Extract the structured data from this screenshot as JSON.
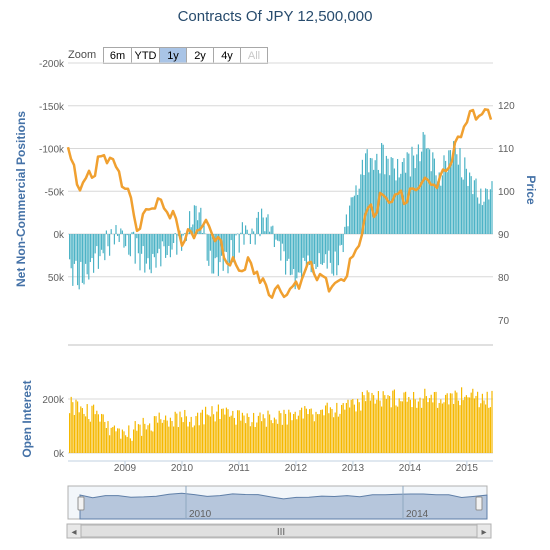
{
  "title": "Contracts Of JPY 12,500,000",
  "zoom": {
    "label": "Zoom",
    "buttons": [
      "6m",
      "YTD",
      "1y",
      "2y",
      "4y",
      "All"
    ],
    "active": "1y",
    "disabled": "All"
  },
  "colors": {
    "position_bars": "#4db3c6",
    "price_line": "#f0a030",
    "open_interest": "#f5b800",
    "axis_title": "#4572a7",
    "navigator_fill": "#b6c6dc",
    "navigator_line": "#5f7fa8"
  },
  "chart_data": [
    {
      "type": "bar",
      "title": "Contracts Of JPY 12,500,000",
      "series": [
        {
          "name": "",
          "type": "bar",
          "x": [
            "2008-01",
            "2008-04",
            "2008-07",
            "2008-10",
            "2009-01",
            "2009-04",
            "2009-07",
            "2009-10",
            "2010-01",
            "2010-04",
            "2010-07",
            "2010-10",
            "2011-01",
            "2011-04",
            "2011-07",
            "2011-10",
            "2012-01",
            "2012-04",
            "2012-07",
            "2012-10",
            "2013-01",
            "2013-04",
            "2013-07",
            "2013-10",
            "2014-01",
            "2014-04",
            "2014-07",
            "2014-10",
            "2015-01",
            "2015-04"
          ],
          "values": [
            50,
            60,
            35,
            15,
            10,
            35,
            45,
            25,
            20,
            -25,
            40,
            45,
            15,
            5,
            -10,
            35,
            60,
            45,
            45,
            40,
            -40,
            -75,
            -80,
            -70,
            -75,
            -100,
            -60,
            -95,
            -60,
            -40
          ]
        },
        {
          "name": "",
          "type": "line",
          "axis": "Price",
          "x": [
            "2008-01",
            "2008-04",
            "2008-07",
            "2008-10",
            "2009-01",
            "2009-04",
            "2009-07",
            "2009-10",
            "2010-01",
            "2010-04",
            "2010-07",
            "2010-10",
            "2011-01",
            "2011-04",
            "2011-07",
            "2011-10",
            "2012-01",
            "2012-04",
            "2012-07",
            "2012-10",
            "2013-01",
            "2013-04",
            "2013-07",
            "2013-10",
            "2014-01",
            "2014-04",
            "2014-07",
            "2014-10",
            "2015-01",
            "2015-04"
          ],
          "values": [
            110,
            101,
            107,
            109,
            102,
            92,
            99,
            97,
            90,
            92,
            93,
            86,
            83,
            84,
            78,
            77,
            79,
            83,
            79,
            79,
            85,
            95,
            99,
            99,
            100,
            104,
            102,
            110,
            118,
            119
          ]
        },
        {
          "name": "",
          "type": "bar",
          "axis": "Open Interest",
          "x": [
            "2008-01",
            "2008-04",
            "2008-07",
            "2008-10",
            "2009-01",
            "2009-04",
            "2009-07",
            "2009-10",
            "2010-01",
            "2010-04",
            "2010-07",
            "2010-10",
            "2011-01",
            "2011-04",
            "2011-07",
            "2011-10",
            "2012-01",
            "2012-04",
            "2012-07",
            "2012-10",
            "2013-01",
            "2013-04",
            "2013-07",
            "2013-10",
            "2014-01",
            "2014-04",
            "2014-07",
            "2014-10",
            "2015-01",
            "2015-04"
          ],
          "values": [
            195,
            175,
            160,
            110,
            85,
            110,
            130,
            140,
            150,
            145,
            160,
            165,
            150,
            135,
            140,
            150,
            165,
            165,
            170,
            175,
            200,
            215,
            220,
            220,
            210,
            220,
            210,
            225,
            230,
            215
          ]
        }
      ],
      "y_positions": {
        "title": "Net Non-Commercial Positions",
        "ticks": [
          "-200k",
          "-150k",
          "-100k",
          "-50k",
          "0k",
          "50k"
        ],
        "reversed": true
      },
      "y_price": {
        "title": "Price",
        "ticks": [
          "120",
          "110",
          "100",
          "90",
          "80",
          "70"
        ]
      },
      "y_open_interest": {
        "title": "Open Interest",
        "ticks": [
          "200k",
          "0k"
        ]
      },
      "x_ticks": [
        "2009",
        "2010",
        "2011",
        "2012",
        "2013",
        "2014",
        "2015"
      ]
    }
  ],
  "navigator": {
    "year_labels": [
      "2010",
      "2014"
    ],
    "scroll_grip": "III",
    "left_arrow": "◂",
    "right_arrow": "▸"
  }
}
